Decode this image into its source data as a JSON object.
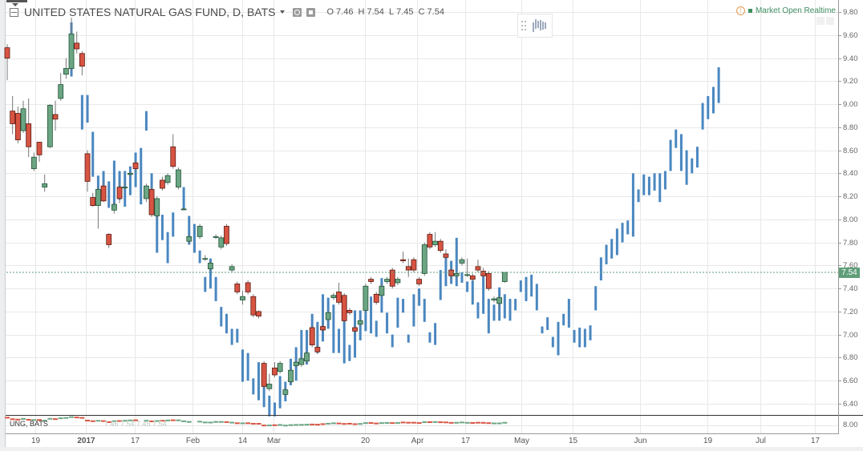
{
  "legend": {
    "symbol_title": "UNITED STATES NATURAL GAS FUND, D, BATS",
    "open_label": "O",
    "open": "7.46",
    "high_label": "H",
    "high": "7.54",
    "low_label": "L",
    "low": "7.45",
    "close_label": "C",
    "close": "7.54"
  },
  "status": {
    "text": "Market Open Realtime",
    "icon": "info-icon"
  },
  "last_price": "7.54",
  "pane2": {
    "label": "UNG, BATS",
    "ohlc": "7.46 7.54 7.45 7.54",
    "axis_label": "8.00"
  },
  "colors": {
    "up": "#6ba583",
    "up_border": "#225437",
    "down": "#d75442",
    "down_border": "#5b1a13",
    "pattern": "#4a87c0",
    "last": "#5e9e78",
    "grid": "#e8e8e8"
  },
  "chart_data": {
    "type": "candlestick",
    "title": "UNITED STATES NATURAL GAS FUND, D, BATS",
    "y_ticks": [
      "9.80",
      "9.60",
      "9.40",
      "9.20",
      "9.00",
      "8.80",
      "8.60",
      "8.40",
      "8.20",
      "8.00",
      "7.80",
      "7.60",
      "7.40",
      "7.20",
      "7.00",
      "6.80",
      "6.60",
      "6.40"
    ],
    "ylim": [
      6.3,
      9.9
    ],
    "x_ticks": [
      {
        "label": "19",
        "bar": 5.2
      },
      {
        "label": "2017",
        "bar": 14.7
      },
      {
        "label": "17",
        "bar": 23.8
      },
      {
        "label": "Feb",
        "bar": 34.6
      },
      {
        "label": "14",
        "bar": 43.9
      },
      {
        "label": "Mar",
        "bar": 49.8
      },
      {
        "label": "20",
        "bar": 66.9
      },
      {
        "label": "Apr",
        "bar": 76.6
      },
      {
        "label": "17",
        "bar": 85.6
      },
      {
        "label": "May",
        "bar": 96.1
      },
      {
        "label": "15",
        "bar": 105.7
      },
      {
        "label": "Jun",
        "bar": 118.3
      },
      {
        "label": "19",
        "bar": 130.9
      },
      {
        "label": "Jul",
        "bar": 140.8
      },
      {
        "label": "17",
        "bar": 151
      }
    ],
    "candles_ohlc": [
      [
        0,
        9.49,
        9.52,
        9.21,
        9.4
      ],
      [
        1,
        8.94,
        9.07,
        8.74,
        8.83
      ],
      [
        2,
        8.92,
        8.98,
        8.66,
        8.69
      ],
      [
        3,
        8.77,
        9.03,
        8.75,
        8.96
      ],
      [
        4,
        8.83,
        9.05,
        8.54,
        8.63
      ],
      [
        5,
        8.44,
        8.58,
        8.42,
        8.54
      ],
      [
        6,
        8.67,
        8.67,
        8.5,
        8.56
      ],
      [
        7,
        8.28,
        8.39,
        8.24,
        8.31
      ],
      [
        8,
        8.63,
        9.0,
        8.62,
        8.99
      ],
      [
        9,
        8.91,
        9.03,
        8.77,
        8.87
      ],
      [
        10,
        9.05,
        9.27,
        9.03,
        9.17
      ],
      [
        11,
        9.26,
        9.4,
        9.22,
        9.31
      ],
      [
        12,
        9.31,
        9.75,
        9.29,
        9.61
      ],
      [
        13,
        9.53,
        9.63,
        9.44,
        9.48
      ],
      [
        14,
        9.44,
        9.46,
        9.25,
        9.33
      ],
      [
        15,
        8.57,
        8.6,
        8.24,
        8.33
      ],
      [
        16,
        8.19,
        8.23,
        8.11,
        8.12
      ],
      [
        17,
        8.12,
        8.29,
        7.92,
        8.26
      ],
      [
        18,
        8.29,
        8.33,
        8.15,
        8.16
      ],
      [
        19,
        7.87,
        7.88,
        7.75,
        7.78
      ],
      [
        20,
        8.08,
        8.15,
        8.05,
        8.13
      ],
      [
        21,
        8.28,
        8.33,
        8.14,
        8.18
      ],
      [
        22,
        8.28,
        8.32,
        8.26,
        8.28
      ],
      [
        23,
        8.39,
        8.41,
        8.37,
        8.4
      ],
      [
        24,
        8.49,
        8.51,
        8.41,
        8.44
      ],
      [
        26,
        8.18,
        8.31,
        8.15,
        8.29
      ],
      [
        27,
        8.26,
        8.29,
        8.02,
        8.04
      ],
      [
        28,
        8.03,
        8.2,
        8.0,
        8.18
      ],
      [
        29,
        8.34,
        8.37,
        8.25,
        8.27
      ],
      [
        30,
        8.32,
        8.4,
        8.3,
        8.38
      ],
      [
        31,
        8.63,
        8.74,
        8.44,
        8.46
      ],
      [
        32,
        8.28,
        8.45,
        8.26,
        8.43
      ],
      [
        33,
        8.09,
        8.1,
        8.08,
        8.09
      ],
      [
        34,
        7.81,
        7.87,
        7.79,
        7.85
      ],
      [
        36,
        7.85,
        7.96,
        7.83,
        7.94
      ],
      [
        37,
        7.66,
        7.69,
        7.64,
        7.66
      ],
      [
        38,
        7.57,
        7.64,
        7.55,
        7.62
      ],
      [
        39,
        7.85,
        7.87,
        7.83,
        7.85
      ],
      [
        40,
        7.76,
        7.86,
        7.74,
        7.84
      ],
      [
        41,
        7.94,
        7.96,
        7.77,
        7.79
      ],
      [
        42,
        7.56,
        7.61,
        7.54,
        7.59
      ],
      [
        43,
        7.44,
        7.46,
        7.35,
        7.37
      ],
      [
        44,
        7.3,
        7.38,
        7.26,
        7.33
      ],
      [
        45,
        7.45,
        7.47,
        7.35,
        7.37
      ],
      [
        46,
        7.33,
        7.35,
        7.15,
        7.17
      ],
      [
        47,
        7.2,
        7.21,
        7.14,
        7.16
      ],
      [
        48,
        6.75,
        6.77,
        6.53,
        6.55
      ],
      [
        49,
        6.53,
        6.66,
        6.51,
        6.57
      ],
      [
        50,
        6.71,
        6.76,
        6.63,
        6.65
      ],
      [
        51,
        6.68,
        6.77,
        6.66,
        6.75
      ],
      [
        52,
        6.48,
        6.55,
        6.46,
        6.52
      ],
      [
        53,
        6.59,
        6.71,
        6.57,
        6.69
      ],
      [
        54,
        6.73,
        6.78,
        6.71,
        6.76
      ],
      [
        55,
        6.74,
        6.81,
        6.72,
        6.79
      ],
      [
        56,
        6.77,
        6.86,
        6.75,
        6.84
      ],
      [
        57,
        7.06,
        7.08,
        6.89,
        6.91
      ],
      [
        58,
        6.89,
        6.91,
        6.83,
        6.85
      ],
      [
        59,
        7.07,
        7.09,
        7.02,
        7.04
      ],
      [
        60,
        7.13,
        7.21,
        7.11,
        7.19
      ],
      [
        61,
        7.32,
        7.36,
        7.3,
        7.34
      ],
      [
        62,
        7.37,
        7.45,
        7.26,
        7.28
      ],
      [
        63,
        7.34,
        7.36,
        7.1,
        7.12
      ],
      [
        64,
        7.21,
        7.23,
        7.17,
        7.19
      ],
      [
        65,
        7.06,
        7.08,
        7.01,
        7.03
      ],
      [
        66,
        7.09,
        7.14,
        7.07,
        7.12
      ],
      [
        67,
        7.21,
        7.44,
        7.19,
        7.42
      ],
      [
        68,
        7.48,
        7.5,
        7.44,
        7.46
      ],
      [
        69,
        7.35,
        7.37,
        7.26,
        7.28
      ],
      [
        70,
        7.34,
        7.44,
        7.32,
        7.42
      ],
      [
        71,
        7.46,
        7.5,
        7.44,
        7.48
      ],
      [
        72,
        7.56,
        7.58,
        7.4,
        7.42
      ],
      [
        73,
        7.45,
        7.5,
        7.43,
        7.48
      ],
      [
        74,
        7.65,
        7.72,
        7.62,
        7.64
      ],
      [
        75,
        7.59,
        7.66,
        7.5,
        7.56
      ],
      [
        76,
        7.65,
        7.67,
        7.54,
        7.56
      ],
      [
        77,
        7.48,
        7.5,
        7.42,
        7.44
      ],
      [
        78,
        7.53,
        7.8,
        7.51,
        7.78
      ],
      [
        79,
        7.87,
        7.89,
        7.74,
        7.76
      ],
      [
        80,
        7.78,
        7.89,
        7.76,
        7.81
      ],
      [
        81,
        7.81,
        7.83,
        7.71,
        7.73
      ],
      [
        82,
        7.7,
        7.74,
        7.65,
        7.67
      ],
      [
        83,
        7.56,
        7.58,
        7.48,
        7.51
      ],
      [
        84,
        7.51,
        7.55,
        7.49,
        7.53
      ],
      [
        85,
        7.62,
        7.67,
        7.6,
        7.65
      ],
      [
        86,
        7.52,
        7.66,
        7.5,
        7.52
      ],
      [
        87,
        7.51,
        7.53,
        7.46,
        7.48
      ],
      [
        88,
        7.59,
        7.65,
        7.54,
        7.56
      ],
      [
        89,
        7.55,
        7.58,
        7.49,
        7.51
      ],
      [
        90,
        7.53,
        7.55,
        7.38,
        7.4
      ],
      [
        91,
        7.3,
        7.33,
        7.28,
        7.31
      ],
      [
        92,
        7.27,
        7.34,
        7.22,
        7.32
      ],
      [
        93,
        7.46,
        7.54,
        7.45,
        7.54
      ]
    ],
    "pattern_bars_hl": [
      [
        12,
        9.71,
        9.24
      ],
      [
        14,
        9.08,
        8.78
      ],
      [
        15,
        9.08,
        8.84
      ],
      [
        16,
        8.76,
        8.37
      ],
      [
        17,
        8.38,
        8.12
      ],
      [
        18,
        8.42,
        8.17
      ],
      [
        19,
        8.33,
        8.1
      ],
      [
        20,
        8.51,
        8.13
      ],
      [
        21,
        8.42,
        8.17
      ],
      [
        22,
        8.42,
        8.11
      ],
      [
        23,
        8.46,
        8.21
      ],
      [
        24,
        8.58,
        8.28
      ],
      [
        25,
        8.62,
        8.13
      ],
      [
        26,
        8.94,
        8.77
      ],
      [
        27,
        8.4,
        8.17
      ],
      [
        28,
        8.04,
        7.71
      ],
      [
        29,
        8.04,
        7.82
      ],
      [
        30,
        7.89,
        7.62
      ],
      [
        31,
        8.06,
        7.85
      ],
      [
        33,
        8.28,
        8.08
      ],
      [
        34,
        8.03,
        7.78
      ],
      [
        35,
        7.96,
        7.71
      ],
      [
        36,
        7.73,
        7.62
      ],
      [
        37,
        7.5,
        7.37
      ],
      [
        38,
        7.66,
        7.4
      ],
      [
        39,
        7.5,
        7.29
      ],
      [
        40,
        7.24,
        7.07
      ],
      [
        41,
        7.18,
        7.01
      ],
      [
        42,
        7.05,
        6.91
      ],
      [
        43,
        7.05,
        6.93
      ],
      [
        44,
        6.87,
        6.59
      ],
      [
        45,
        6.84,
        6.6
      ],
      [
        46,
        6.62,
        6.48
      ],
      [
        47,
        6.76,
        6.43
      ],
      [
        48,
        6.57,
        6.37
      ],
      [
        49,
        6.47,
        6.29
      ],
      [
        50,
        6.41,
        6.29
      ],
      [
        51,
        6.64,
        6.36
      ],
      [
        52,
        6.59,
        6.42
      ],
      [
        53,
        6.79,
        6.56
      ],
      [
        54,
        6.89,
        6.6
      ],
      [
        55,
        7.04,
        6.77
      ],
      [
        56,
        7.04,
        6.74
      ],
      [
        57,
        7.18,
        6.91
      ],
      [
        58,
        7.11,
        6.84
      ],
      [
        59,
        7.35,
        6.94
      ],
      [
        60,
        7.32,
        7.05
      ],
      [
        61,
        7.26,
        6.84
      ],
      [
        62,
        7.05,
        6.84
      ],
      [
        63,
        7.18,
        6.75
      ],
      [
        64,
        6.91,
        6.77
      ],
      [
        65,
        7.21,
        6.8
      ],
      [
        66,
        7.21,
        6.95
      ],
      [
        67,
        7.21,
        7.03
      ],
      [
        68,
        7.33,
        7.01
      ],
      [
        69,
        7.12,
        6.98
      ],
      [
        70,
        7.49,
        7.19
      ],
      [
        71,
        7.19,
        7.01
      ],
      [
        72,
        7.0,
        6.89
      ],
      [
        73,
        7.32,
        7.06
      ],
      [
        74,
        7.31,
        7.19
      ],
      [
        75,
        7.0,
        6.93
      ],
      [
        76,
        7.35,
        7.07
      ],
      [
        77,
        7.4,
        7.25
      ],
      [
        78,
        7.31,
        7.11
      ],
      [
        79,
        7.02,
        6.93
      ],
      [
        80,
        7.1,
        6.91
      ],
      [
        81,
        7.56,
        7.3
      ],
      [
        82,
        7.68,
        7.42
      ],
      [
        83,
        7.64,
        7.44
      ],
      [
        84,
        7.84,
        7.42
      ],
      [
        85,
        7.54,
        7.45
      ],
      [
        86,
        7.46,
        7.37
      ],
      [
        87,
        7.47,
        7.26
      ],
      [
        88,
        7.28,
        7.14
      ],
      [
        89,
        7.52,
        7.18
      ],
      [
        90,
        7.31,
        7.01
      ],
      [
        91,
        7.26,
        7.12
      ],
      [
        92,
        7.41,
        7.12
      ],
      [
        93,
        7.35,
        7.14
      ],
      [
        94,
        7.31,
        7.12
      ],
      [
        95,
        7.31,
        7.21
      ],
      [
        96,
        7.47,
        7.37
      ],
      [
        97,
        7.5,
        7.29
      ],
      [
        98,
        7.52,
        7.33
      ],
      [
        99,
        7.44,
        7.21
      ],
      [
        100,
        7.07,
        7.01
      ],
      [
        101,
        7.15,
        7.04
      ],
      [
        102,
        6.98,
        6.89
      ],
      [
        103,
        7.11,
        6.82
      ],
      [
        104,
        7.18,
        7.08
      ],
      [
        105,
        7.31,
        7.06
      ],
      [
        106,
        7.04,
        6.93
      ],
      [
        107,
        7.06,
        6.89
      ],
      [
        108,
        7.05,
        6.89
      ],
      [
        109,
        7.08,
        6.95
      ],
      [
        110,
        7.42,
        7.21
      ],
      [
        111,
        7.67,
        7.47
      ],
      [
        112,
        7.78,
        7.61
      ],
      [
        113,
        7.83,
        7.66
      ],
      [
        114,
        7.92,
        7.69
      ],
      [
        115,
        7.97,
        7.8
      ],
      [
        116,
        7.99,
        7.87
      ],
      [
        117,
        8.4,
        7.85
      ],
      [
        118,
        8.26,
        8.15
      ],
      [
        119,
        8.39,
        8.21
      ],
      [
        120,
        8.37,
        8.21
      ],
      [
        121,
        8.4,
        8.25
      ],
      [
        122,
        8.4,
        8.15
      ],
      [
        123,
        8.42,
        8.26
      ],
      [
        124,
        8.69,
        8.42
      ],
      [
        125,
        8.78,
        8.62
      ],
      [
        126,
        8.74,
        8.42
      ],
      [
        127,
        8.6,
        8.3
      ],
      [
        128,
        8.53,
        8.4
      ],
      [
        129,
        8.63,
        8.45
      ],
      [
        130,
        9.01,
        8.78
      ],
      [
        131,
        9.07,
        8.87
      ],
      [
        132,
        9.15,
        8.92
      ],
      [
        133,
        9.32,
        9.01
      ]
    ]
  }
}
